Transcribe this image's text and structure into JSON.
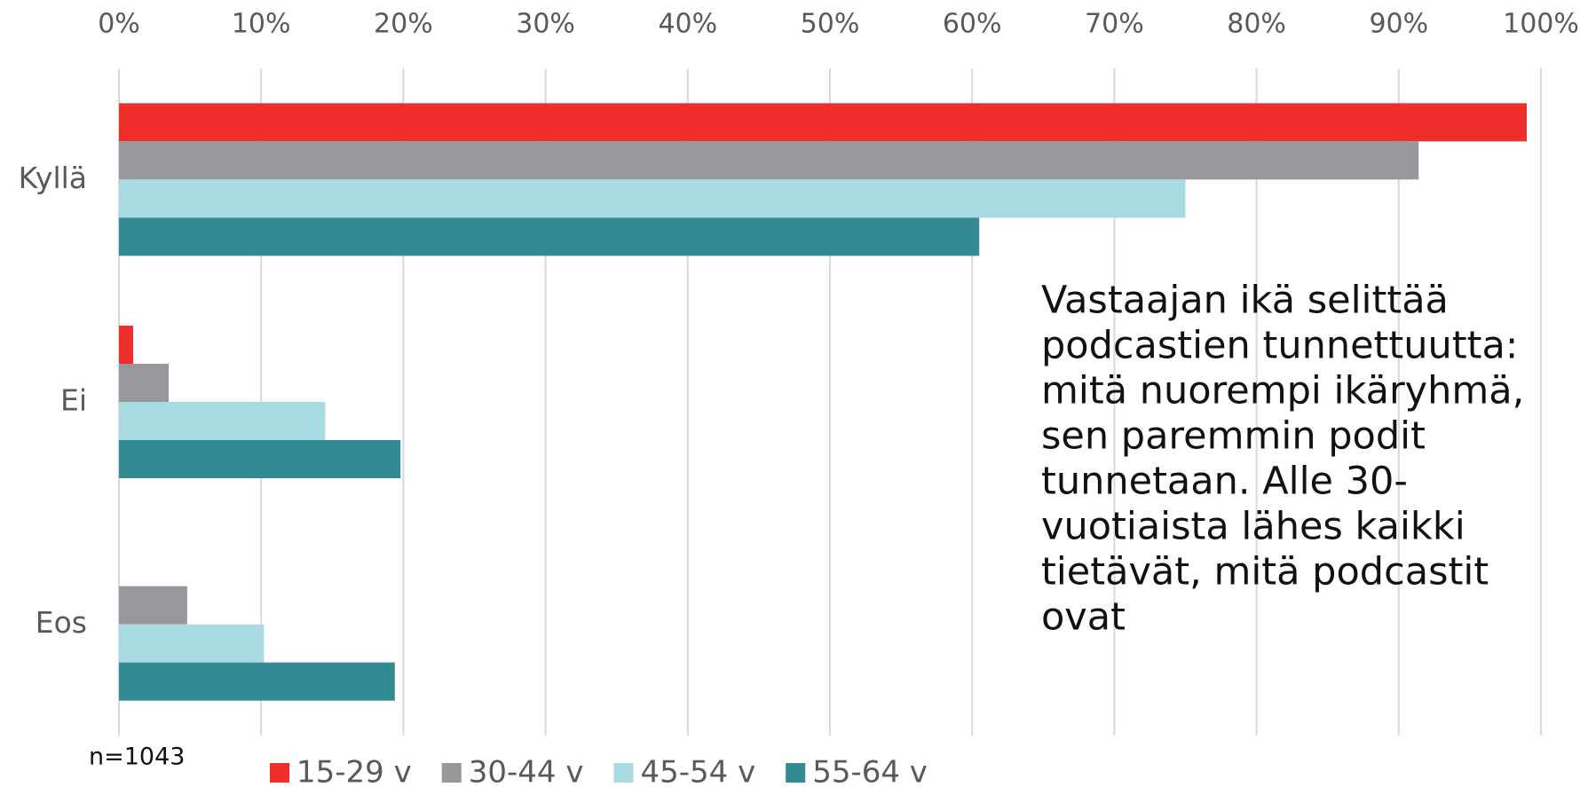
{
  "chart_data": {
    "type": "barh",
    "categories": [
      "Kyllä",
      "Ei",
      "Eos"
    ],
    "series": [
      {
        "name": "15-29 v",
        "color": "#ee2e2b",
        "values": [
          99,
          1,
          0
        ]
      },
      {
        "name": "30-44 v",
        "color": "#98989c",
        "values": [
          91.4,
          3.5,
          4.8
        ]
      },
      {
        "name": "45-54 v",
        "color": "#a8dbe1",
        "values": [
          75,
          14.5,
          10.2
        ]
      },
      {
        "name": "55-64 v",
        "color": "#348a92",
        "values": [
          60.5,
          19.8,
          19.4
        ]
      }
    ],
    "xlim": [
      0,
      100
    ],
    "xticks": [
      {
        "value": 0,
        "label": "0%"
      },
      {
        "value": 10,
        "label": "10%"
      },
      {
        "value": 20,
        "label": "20%"
      },
      {
        "value": 30,
        "label": "30%"
      },
      {
        "value": 40,
        "label": "40%"
      },
      {
        "value": 50,
        "label": "50%"
      },
      {
        "value": 60,
        "label": "60%"
      },
      {
        "value": 70,
        "label": "70%"
      },
      {
        "value": 80,
        "label": "80%"
      },
      {
        "value": 90,
        "label": "90%"
      },
      {
        "value": 100,
        "label": "100%"
      }
    ],
    "grid": true,
    "legend": "bottom",
    "note": "n=1043",
    "annotation": [
      "Vastaajan ikä selittää",
      "podcastien tunnettuutta:",
      "mitä nuorempi ikäryhmä,",
      "sen paremmin podit",
      "tunnetaan. Alle 30-",
      "vuotiaista lähes kaikki",
      "tietävät, mitä podcastit",
      "ovat"
    ]
  }
}
